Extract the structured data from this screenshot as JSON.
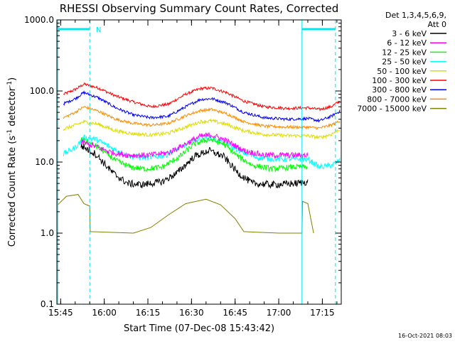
{
  "chart_data": {
    "type": "line",
    "title": "RHESSI Observing Summary Count Rates, Corrected",
    "xlabel": "Start Time (07-Dec-08 15:43:42)",
    "ylabel": "Corrected Count Rate (s",
    "ylabel_exp": "-1",
    "ylabel_tail": " detector",
    "ylabel_exp2": "-1",
    "ylabel_close": ")",
    "y_scale": "log",
    "ylim": [
      0.1,
      1000
    ],
    "xlim": [
      "15:43:42",
      "17:21:30"
    ],
    "y_ticks": [
      {
        "value": 1000,
        "label": "1000.0"
      },
      {
        "value": 100,
        "label": "100.0"
      },
      {
        "value": 10,
        "label": "10.0"
      },
      {
        "value": 1,
        "label": "1.0"
      },
      {
        "value": 0.1,
        "label": "0.1"
      }
    ],
    "x_ticks": [
      {
        "value": "15:45",
        "label": "15:45"
      },
      {
        "value": "16:00",
        "label": "16:00"
      },
      {
        "value": "16:15",
        "label": "16:15"
      },
      {
        "value": "16:30",
        "label": "16:30"
      },
      {
        "value": "16:45",
        "label": "16:45"
      },
      {
        "value": "17:00",
        "label": "17:00"
      },
      {
        "value": "17:15",
        "label": "17:15"
      }
    ],
    "legend_header": [
      "Det 1,3,4,5,6,9,",
      "Att 0"
    ],
    "legend_placement": "right",
    "annotation_n": "N",
    "timestamp": "16-Oct-2021 08:03",
    "markers": {
      "solid": [
        "15:44:00",
        "17:08:00"
      ],
      "dashed": [
        "15:55:00",
        "17:19:30"
      ],
      "night_bars": [
        {
          "start": "15:44:00",
          "end": "15:55:00"
        },
        {
          "start": "17:08:00",
          "end": "17:19:30"
        }
      ],
      "color": "#00e5ee"
    },
    "series": [
      {
        "name": "3 - 6 keV",
        "color": "#000000",
        "noise": 0.05,
        "points": [
          [
            "15:52:00",
            17
          ],
          [
            "15:57:00",
            13
          ],
          [
            "16:03:00",
            7
          ],
          [
            "16:08:00",
            5
          ],
          [
            "16:13:00",
            4.8
          ],
          [
            "16:20:00",
            5.3
          ],
          [
            "16:25:00",
            7
          ],
          [
            "16:31:00",
            12
          ],
          [
            "16:36:00",
            14.5
          ],
          [
            "16:41:00",
            12
          ],
          [
            "16:46:00",
            7
          ],
          [
            "16:51:00",
            5
          ],
          [
            "16:58:00",
            4.8
          ],
          [
            "17:06:00",
            5
          ],
          [
            "17:10:00",
            5.3
          ]
        ]
      },
      {
        "name": "6 - 12 keV",
        "color": "#ff00ff",
        "noise": 0.04,
        "points": [
          [
            "15:52:00",
            19
          ],
          [
            "15:57:00",
            16.5
          ],
          [
            "16:03:00",
            13.5
          ],
          [
            "16:08:00",
            12.5
          ],
          [
            "16:15:00",
            12.5
          ],
          [
            "16:22:00",
            13.5
          ],
          [
            "16:28:00",
            18
          ],
          [
            "16:33:00",
            23
          ],
          [
            "16:37:00",
            24
          ],
          [
            "16:42:00",
            20
          ],
          [
            "16:48:00",
            14.5
          ],
          [
            "16:55:00",
            12.5
          ],
          [
            "17:05:00",
            12.5
          ],
          [
            "17:10:00",
            12.5
          ]
        ]
      },
      {
        "name": "12 - 25 keV",
        "color": "#00ff00",
        "noise": 0.04,
        "points": [
          [
            "15:52:00",
            21
          ],
          [
            "15:58:00",
            16
          ],
          [
            "16:04:00",
            10.5
          ],
          [
            "16:09:00",
            8.5
          ],
          [
            "16:14:00",
            8
          ],
          [
            "16:20:00",
            8.5
          ],
          [
            "16:26:00",
            12
          ],
          [
            "16:31:00",
            18
          ],
          [
            "16:36:00",
            21
          ],
          [
            "16:41:00",
            18
          ],
          [
            "16:46:00",
            12
          ],
          [
            "16:51:00",
            9
          ],
          [
            "16:58:00",
            8
          ],
          [
            "17:05:00",
            8.5
          ],
          [
            "17:10:00",
            8.5
          ]
        ]
      },
      {
        "name": "25 - 50 keV",
        "color": "#00ffff",
        "noise": 0.04,
        "points": [
          [
            "15:46:00",
            13
          ],
          [
            "15:50:00",
            16
          ],
          [
            "15:53:00",
            22
          ],
          [
            "15:57:00",
            21
          ],
          [
            "16:03:00",
            15.5
          ],
          [
            "16:09:00",
            12
          ],
          [
            "16:15:00",
            11.5
          ],
          [
            "16:21:00",
            12.5
          ],
          [
            "16:27:00",
            16.5
          ],
          [
            "16:32:00",
            21
          ],
          [
            "16:36:00",
            22
          ],
          [
            "16:41:00",
            19.5
          ],
          [
            "16:47:00",
            14
          ],
          [
            "16:53:00",
            11.5
          ],
          [
            "17:00:00",
            11
          ],
          [
            "17:06:00",
            11
          ],
          [
            "17:10:00",
            11
          ],
          [
            "17:14:00",
            8.5
          ],
          [
            "17:18:00",
            9
          ],
          [
            "17:21:00",
            10.5
          ]
        ]
      },
      {
        "name": "50 - 100 keV",
        "color": "#dddd00",
        "noise": 0.025,
        "points": [
          [
            "15:46:00",
            29
          ],
          [
            "15:50:00",
            33
          ],
          [
            "15:53:00",
            37
          ],
          [
            "15:58:00",
            34
          ],
          [
            "16:04:00",
            27.5
          ],
          [
            "16:10:00",
            25
          ],
          [
            "16:16:00",
            24
          ],
          [
            "16:22:00",
            25.5
          ],
          [
            "16:28:00",
            31
          ],
          [
            "16:33:00",
            37
          ],
          [
            "16:37:00",
            38
          ],
          [
            "16:42:00",
            34
          ],
          [
            "16:48:00",
            27.5
          ],
          [
            "16:55:00",
            24.5
          ],
          [
            "17:03:00",
            23.5
          ],
          [
            "17:10:00",
            23.5
          ],
          [
            "17:14:00",
            22
          ],
          [
            "17:18:00",
            24.5
          ],
          [
            "17:21:00",
            29
          ]
        ]
      },
      {
        "name": "100 - 300 keV",
        "color": "#ff0000",
        "noise": 0.02,
        "points": [
          [
            "15:46:00",
            90
          ],
          [
            "15:50:00",
            105
          ],
          [
            "15:53:00",
            125
          ],
          [
            "15:58:00",
            110
          ],
          [
            "16:04:00",
            85
          ],
          [
            "16:10:00",
            70
          ],
          [
            "16:16:00",
            60
          ],
          [
            "16:22:00",
            65
          ],
          [
            "16:28:00",
            90
          ],
          [
            "16:33:00",
            108
          ],
          [
            "16:37:00",
            110
          ],
          [
            "16:42:00",
            95
          ],
          [
            "16:48:00",
            72
          ],
          [
            "16:55:00",
            60
          ],
          [
            "17:03:00",
            57
          ],
          [
            "17:10:00",
            58
          ],
          [
            "17:14:00",
            55
          ],
          [
            "17:18:00",
            60
          ],
          [
            "17:21:00",
            72
          ]
        ]
      },
      {
        "name": "300 - 800 keV",
        "color": "#0000ff",
        "noise": 0.02,
        "points": [
          [
            "15:46:00",
            66
          ],
          [
            "15:50:00",
            78
          ],
          [
            "15:53:00",
            95
          ],
          [
            "15:58:00",
            80
          ],
          [
            "16:04:00",
            58
          ],
          [
            "16:10:00",
            46
          ],
          [
            "16:16:00",
            42
          ],
          [
            "16:22:00",
            44
          ],
          [
            "16:28:00",
            60
          ],
          [
            "16:33:00",
            76
          ],
          [
            "16:37:00",
            78
          ],
          [
            "16:42:00",
            68
          ],
          [
            "16:48:00",
            50
          ],
          [
            "16:55:00",
            42
          ],
          [
            "17:03:00",
            40
          ],
          [
            "17:10:00",
            41
          ],
          [
            "17:14:00",
            38
          ],
          [
            "17:18:00",
            44
          ],
          [
            "17:21:00",
            52
          ]
        ]
      },
      {
        "name": "800 - 7000 keV",
        "color": "#ff8c00",
        "noise": 0.02,
        "points": [
          [
            "15:46:00",
            42
          ],
          [
            "15:50:00",
            50
          ],
          [
            "15:53:00",
            60
          ],
          [
            "15:58:00",
            52
          ],
          [
            "16:04:00",
            40
          ],
          [
            "16:10:00",
            35
          ],
          [
            "16:16:00",
            33
          ],
          [
            "16:22:00",
            35
          ],
          [
            "16:28:00",
            45
          ],
          [
            "16:33:00",
            53
          ],
          [
            "16:37:00",
            55
          ],
          [
            "16:42:00",
            48
          ],
          [
            "16:48:00",
            37
          ],
          [
            "16:55:00",
            32
          ],
          [
            "17:03:00",
            31
          ],
          [
            "17:10:00",
            31
          ],
          [
            "17:14:00",
            30
          ],
          [
            "17:18:00",
            33
          ],
          [
            "17:21:00",
            38
          ]
        ]
      },
      {
        "name": "7000 - 15000 keV",
        "color": "#808000",
        "noise": 0.0,
        "points": [
          [
            "15:44:00",
            2.5
          ],
          [
            "15:47:00",
            3.3
          ],
          [
            "15:51:00",
            3.5
          ],
          [
            "15:53:00",
            2.6
          ],
          [
            "15:55:00",
            2.4
          ],
          [
            "15:55:10",
            1.05
          ],
          [
            "16:10:00",
            1.0
          ],
          [
            "16:16:00",
            1.2
          ],
          [
            "16:22:00",
            1.8
          ],
          [
            "16:28:00",
            2.6
          ],
          [
            "16:35:00",
            3.0
          ],
          [
            "16:40:00",
            2.5
          ],
          [
            "16:45:00",
            1.6
          ],
          [
            "16:48:00",
            1.05
          ],
          [
            "17:00:00",
            1.0
          ],
          [
            "17:06:00",
            1.0
          ],
          [
            "17:08:00",
            1.0
          ],
          [
            "17:08:10",
            2.8
          ],
          [
            "17:10:00",
            2.6
          ],
          [
            "17:12:00",
            1.0
          ]
        ]
      }
    ]
  }
}
